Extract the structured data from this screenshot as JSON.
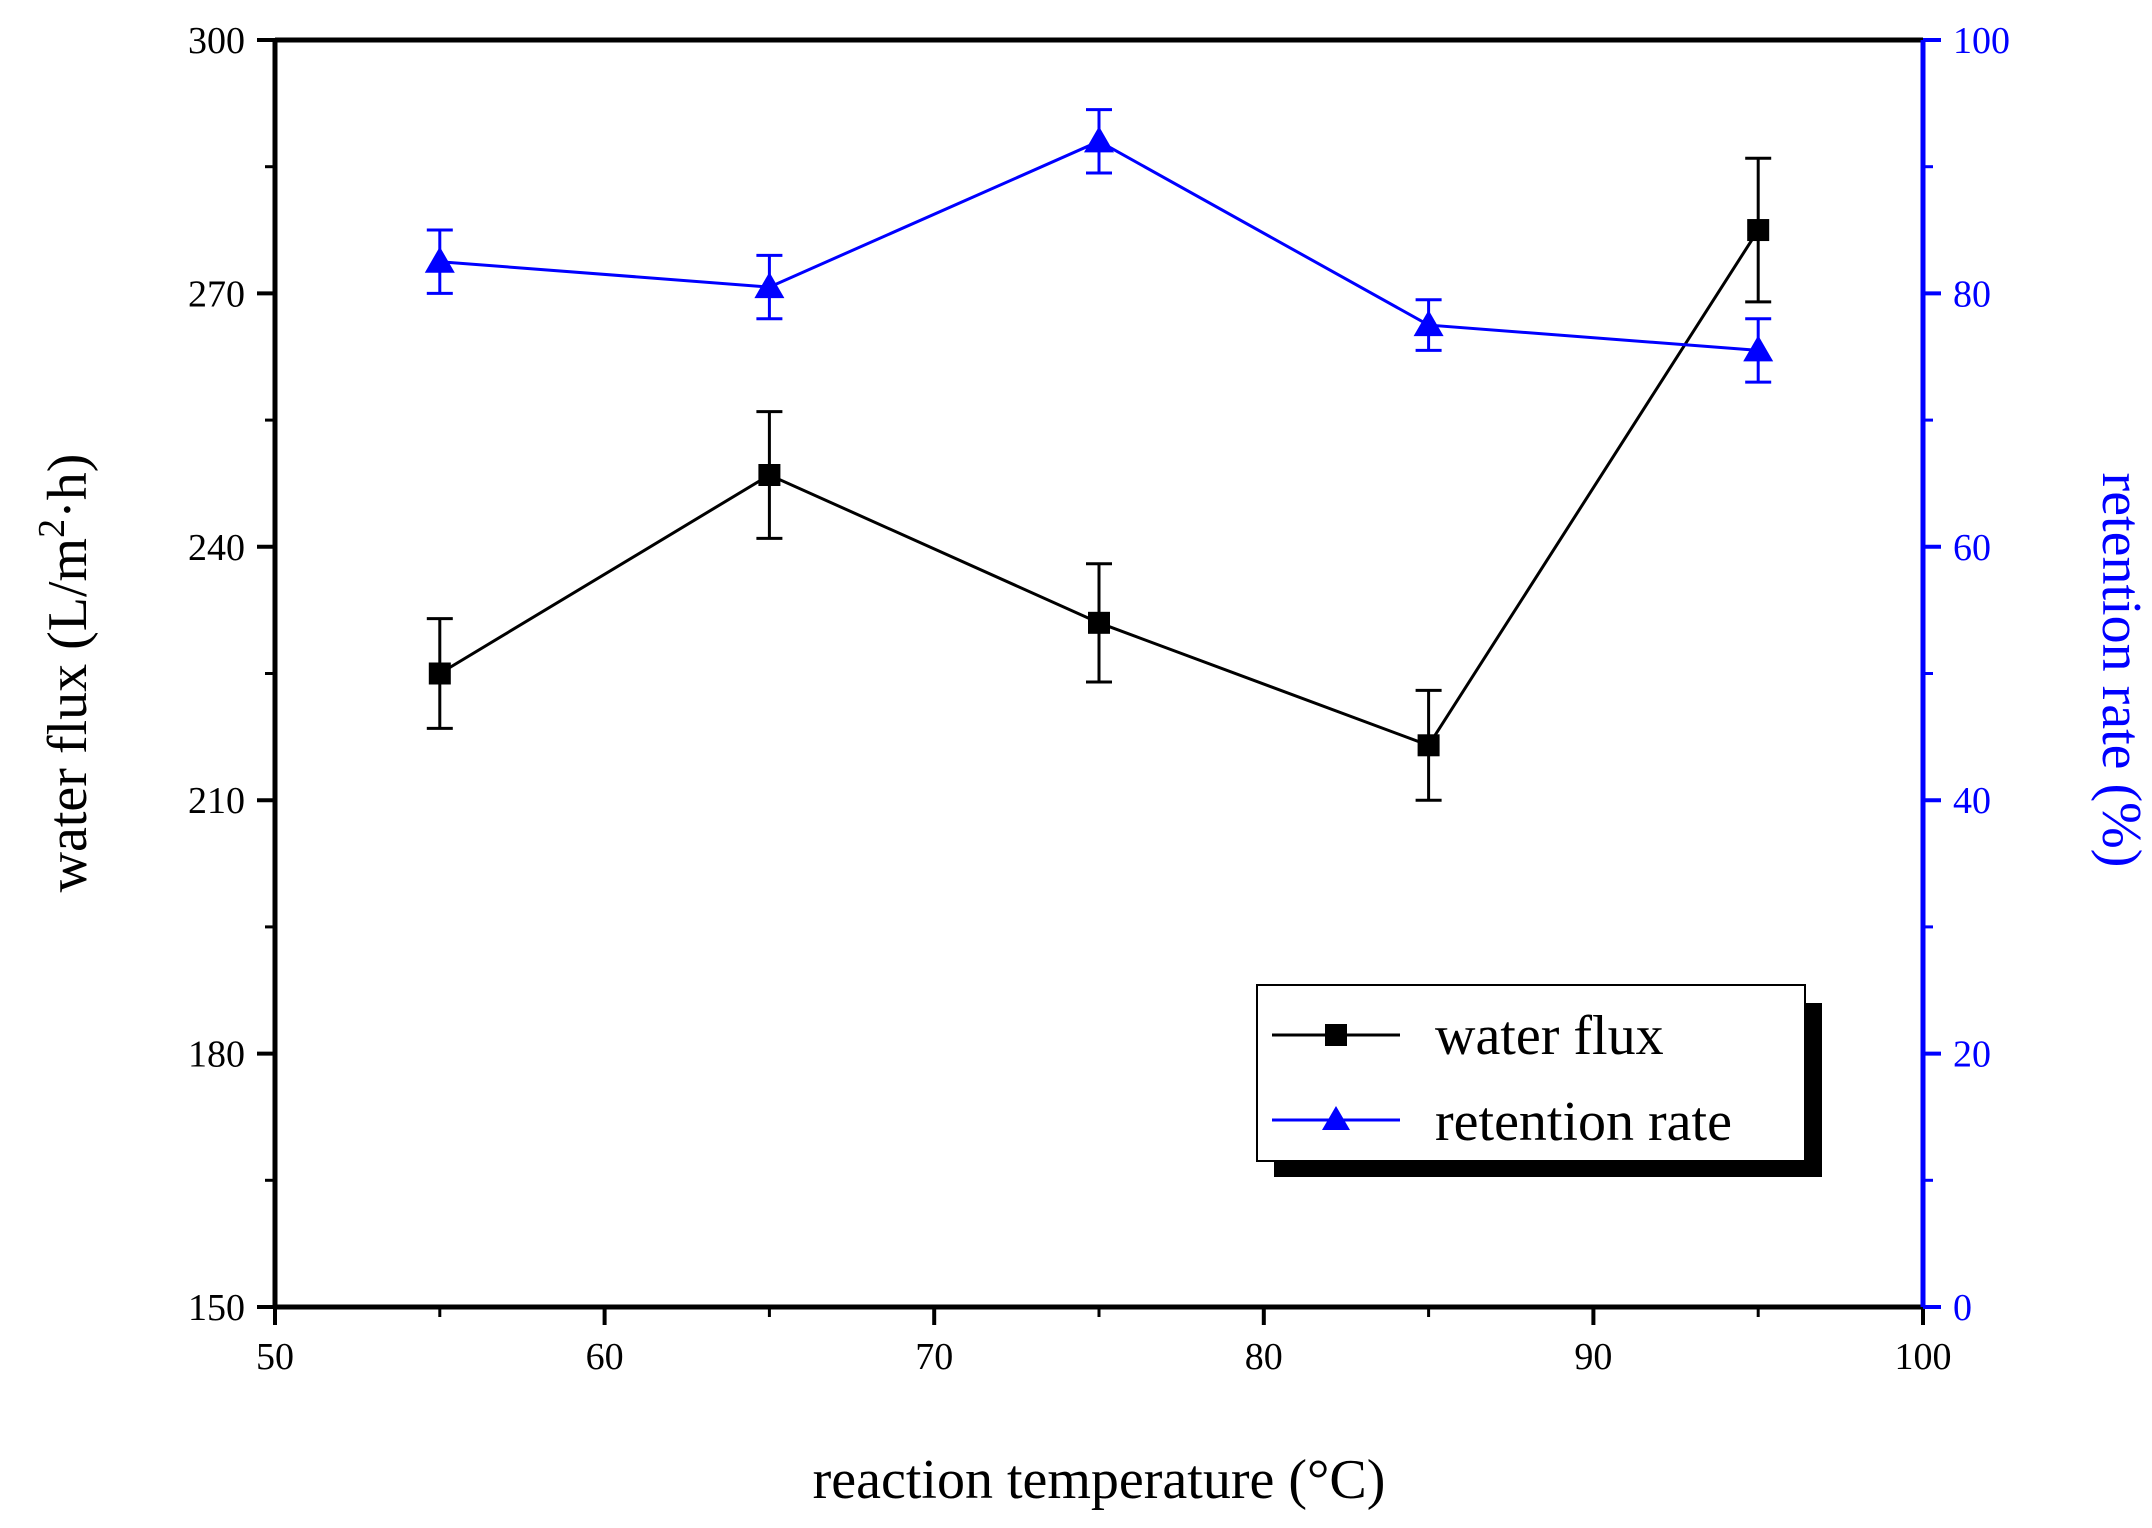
{
  "chart_data": {
    "type": "line",
    "x_axis": {
      "label": "reaction temperature (°C)",
      "range": [
        50,
        100
      ],
      "ticks": [
        50,
        60,
        70,
        80,
        90,
        100
      ],
      "tick_labels": [
        "50",
        "60",
        "70",
        "80",
        "90",
        "100"
      ]
    },
    "y_axis_left": {
      "label_main": "water flux (L/m",
      "label_sup": "2",
      "label_end": "·h)",
      "range": [
        150,
        300
      ],
      "ticks": [
        150,
        180,
        210,
        240,
        270,
        300
      ],
      "tick_labels": [
        "150",
        "180",
        "210",
        "240",
        "270",
        "300"
      ],
      "color": "#000000"
    },
    "y_axis_right": {
      "label": "retention rate (%)",
      "range": [
        0,
        100
      ],
      "ticks": [
        0,
        20,
        40,
        60,
        80,
        100
      ],
      "tick_labels": [
        "0",
        "20",
        "40",
        "60",
        "80",
        "100"
      ],
      "color": "#0000ff"
    },
    "series": [
      {
        "name": "water flux",
        "axis": "left",
        "color": "#000000",
        "marker": "square",
        "x": [
          55,
          65,
          75,
          85,
          95
        ],
        "y": [
          225,
          248.5,
          231,
          216.5,
          277.5
        ],
        "error": [
          6.5,
          7.5,
          7,
          6.5,
          8.5
        ]
      },
      {
        "name": "retention rate",
        "axis": "right",
        "color": "#0000ff",
        "marker": "triangle",
        "x": [
          55,
          65,
          75,
          85,
          95
        ],
        "y": [
          82.5,
          80.5,
          92,
          77.5,
          75.5
        ],
        "error": [
          2.5,
          2.5,
          2.5,
          2,
          2.5
        ]
      }
    ],
    "legend": {
      "position": "bottom-right",
      "entries": [
        "water flux",
        "retention rate"
      ]
    },
    "grid": false
  }
}
